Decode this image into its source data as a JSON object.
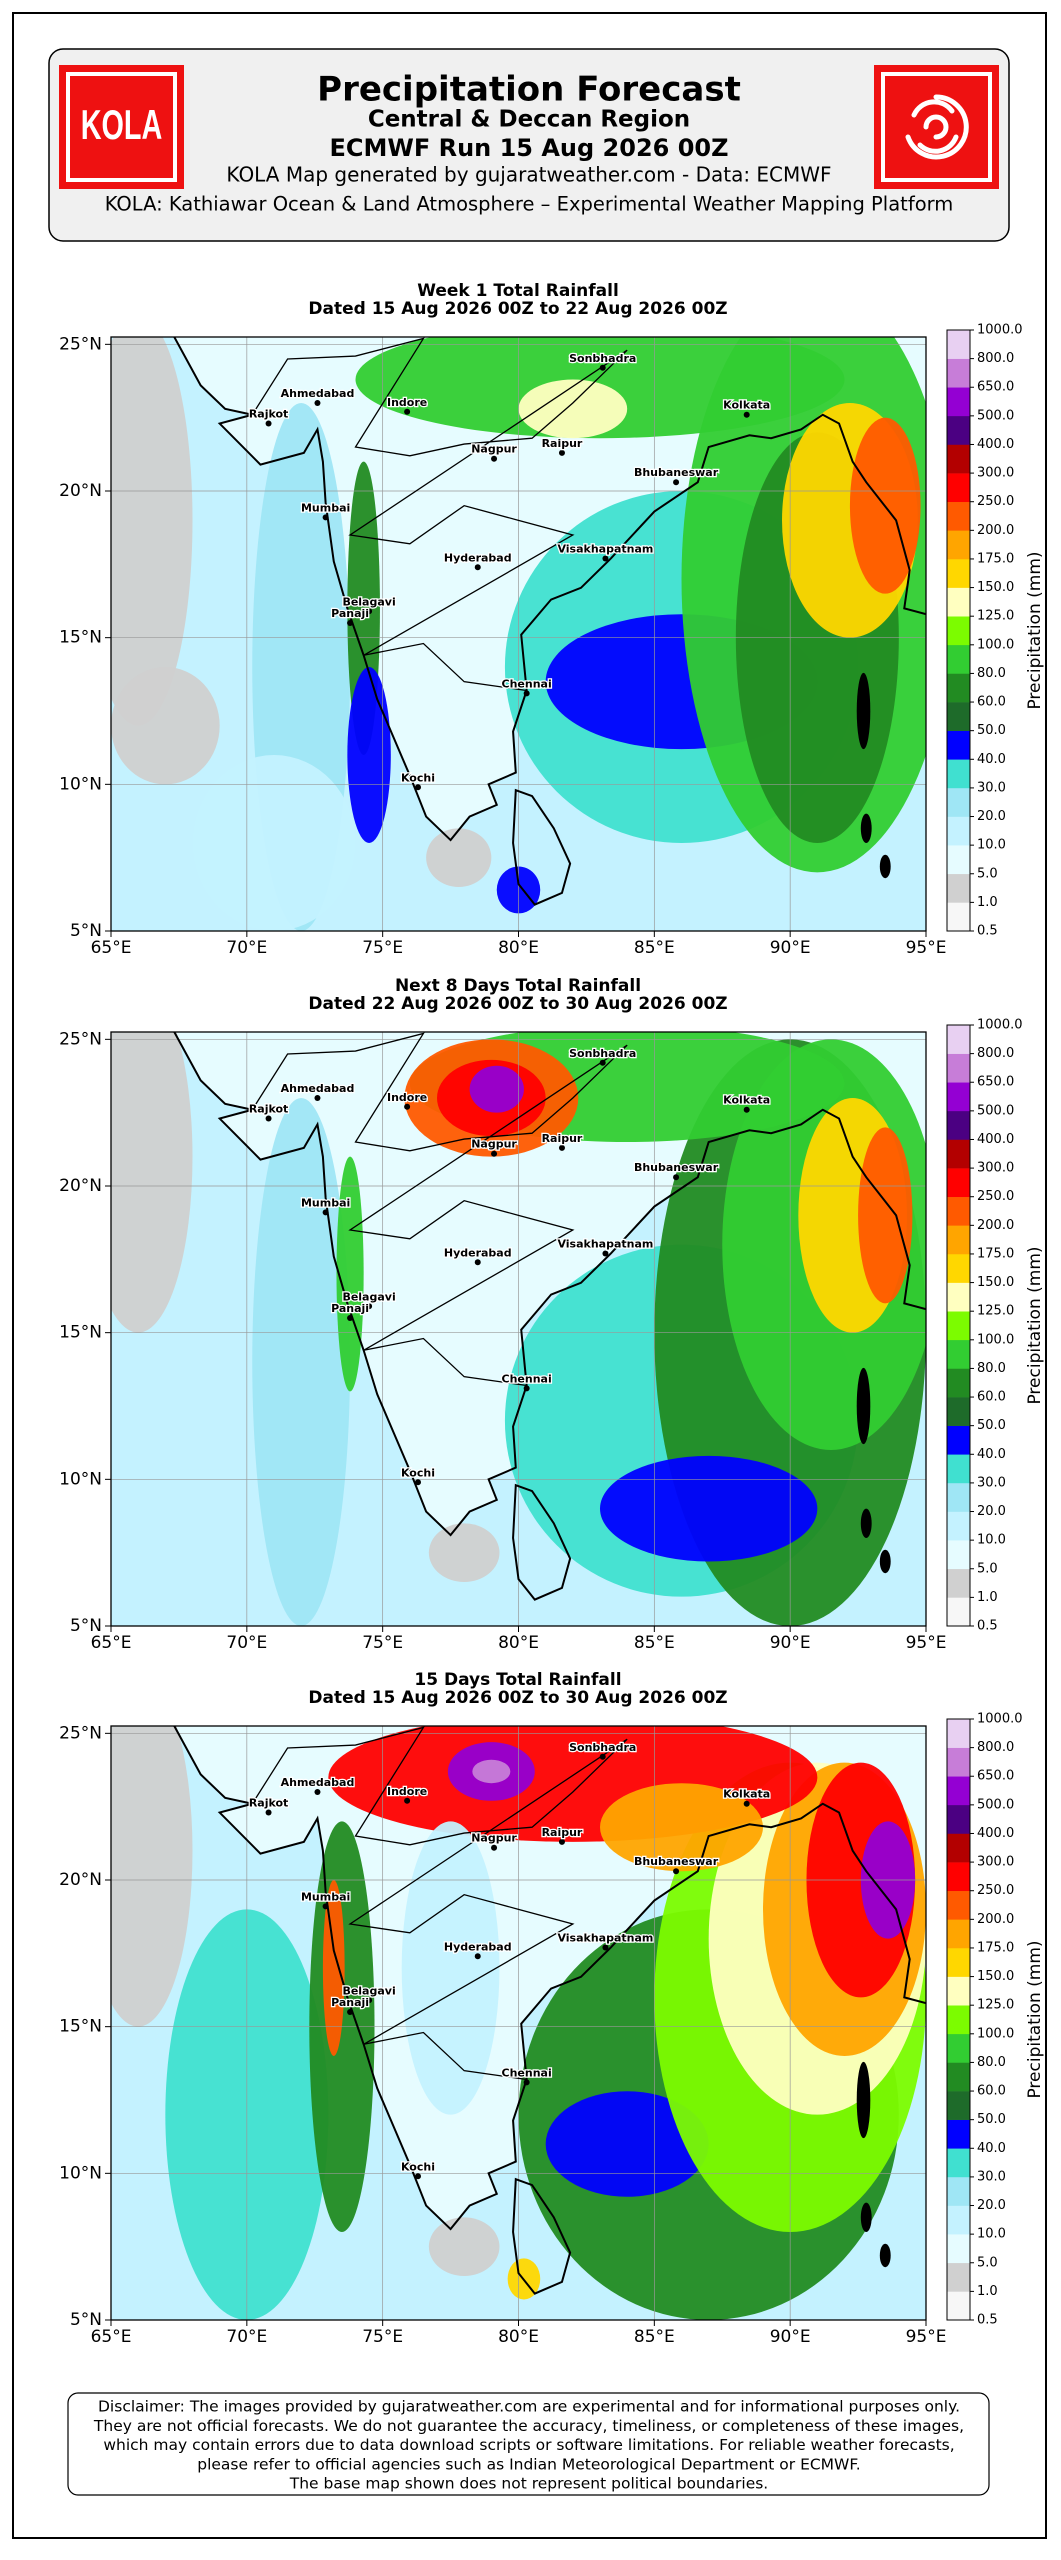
{
  "header": {
    "logo_text": "KOLA",
    "title": "Precipitation Forecast",
    "subtitle": "Central & Deccan Region",
    "run": "ECMWF Run 15 Aug 2026 00Z",
    "credit": "KOLA Map generated by gujaratweather.com - Data: ECMWF",
    "platform": "KOLA: Kathiawar Ocean & Land Atmosphere – Experimental Weather Mapping Platform"
  },
  "maps": [
    {
      "title": "Week 1 Total Rainfall",
      "subtitle": "Dated 15 Aug 2026 00Z to 22 Aug 2026 00Z"
    },
    {
      "title": "Next 8 Days Total Rainfall",
      "subtitle": "Dated 22 Aug 2026 00Z to 30 Aug 2026 00Z"
    },
    {
      "title": "15 Days Total Rainfall",
      "subtitle": "Dated 15 Aug 2026 00Z to 30 Aug 2026 00Z"
    }
  ],
  "axes": {
    "xlim": [
      65,
      95
    ],
    "ylim": [
      5,
      25.25
    ],
    "xticks": [
      {
        "value": 65,
        "label": "65°E"
      },
      {
        "value": 70,
        "label": "70°E"
      },
      {
        "value": 75,
        "label": "75°E"
      },
      {
        "value": 80,
        "label": "80°E"
      },
      {
        "value": 85,
        "label": "85°E"
      },
      {
        "value": 90,
        "label": "90°E"
      },
      {
        "value": 95,
        "label": "95°E"
      }
    ],
    "yticks": [
      {
        "value": 5,
        "label": "5°N"
      },
      {
        "value": 10,
        "label": "10°N"
      },
      {
        "value": 15,
        "label": "15°N"
      },
      {
        "value": 20,
        "label": "20°N"
      },
      {
        "value": 25,
        "label": "25°N"
      }
    ]
  },
  "cities": [
    {
      "name": "Sonbhadra",
      "lon": 83.1,
      "lat": 24.2
    },
    {
      "name": "Ahmedabad",
      "lon": 72.6,
      "lat": 23.0
    },
    {
      "name": "Rajkot",
      "lon": 70.8,
      "lat": 22.3
    },
    {
      "name": "Indore",
      "lon": 75.9,
      "lat": 22.7
    },
    {
      "name": "Kolkata",
      "lon": 88.4,
      "lat": 22.6
    },
    {
      "name": "Nagpur",
      "lon": 79.1,
      "lat": 21.1
    },
    {
      "name": "Raipur",
      "lon": 81.6,
      "lat": 21.3
    },
    {
      "name": "Bhubaneswar",
      "lon": 85.8,
      "lat": 20.3
    },
    {
      "name": "Mumbai",
      "lon": 72.9,
      "lat": 19.1
    },
    {
      "name": "Hyderabad",
      "lon": 78.5,
      "lat": 17.4
    },
    {
      "name": "Visakhapatnam",
      "lon": 83.2,
      "lat": 17.7
    },
    {
      "name": "Belagavi",
      "lon": 74.5,
      "lat": 15.9
    },
    {
      "name": "Panaji",
      "lon": 73.8,
      "lat": 15.5
    },
    {
      "name": "Chennai",
      "lon": 80.3,
      "lat": 13.1
    },
    {
      "name": "Kochi",
      "lon": 76.3,
      "lat": 9.9
    }
  ],
  "colorbar": {
    "label": "Precipitation (mm)",
    "levels": [
      {
        "value": 0.5,
        "label": "0.5"
      },
      {
        "value": 1,
        "label": "1.0"
      },
      {
        "value": 5,
        "label": "5.0"
      },
      {
        "value": 10,
        "label": "10.0"
      },
      {
        "value": 20,
        "label": "20.0"
      },
      {
        "value": 30,
        "label": "30.0"
      },
      {
        "value": 40,
        "label": "40.0"
      },
      {
        "value": 50,
        "label": "50.0"
      },
      {
        "value": 60,
        "label": "60.0"
      },
      {
        "value": 80,
        "label": "80.0"
      },
      {
        "value": 100,
        "label": "100.0"
      },
      {
        "value": 125,
        "label": "125.0"
      },
      {
        "value": 150,
        "label": "150.0"
      },
      {
        "value": 175,
        "label": "175.0"
      },
      {
        "value": 200,
        "label": "200.0"
      },
      {
        "value": 250,
        "label": "250.0"
      },
      {
        "value": 300,
        "label": "300.0"
      },
      {
        "value": 400,
        "label": "400.0"
      },
      {
        "value": 500,
        "label": "500.0"
      },
      {
        "value": 650,
        "label": "650.0"
      },
      {
        "value": 800,
        "label": "800.0"
      },
      {
        "value": 1000,
        "label": "1000.0"
      }
    ],
    "colors": [
      "#f7f7f7",
      "#d0d0d0",
      "#e6fcff",
      "#c4f2ff",
      "#9fe6f5",
      "#40e0d0",
      "#0000ff",
      "#1e6b2a",
      "#228b22",
      "#32cd32",
      "#7cfc00",
      "#ffffc0",
      "#ffd700",
      "#ffa500",
      "#ff5a00",
      "#ff0000",
      "#b30000",
      "#4b0082",
      "#9400d3",
      "#c77dd8",
      "#e8d0f2"
    ]
  },
  "disclaimer": [
    "Disclaimer: The images provided by gujaratweather.com are experimental and for informational purposes only.",
    "They are not official forecasts. We do not guarantee the accuracy, timeliness, or completeness of these images,",
    "which may contain errors due to data download scripts or software limitations. For reliable weather forecasts,",
    "please refer to official agencies such as Indian Meteorological Department or ECMWF.",
    "The base map shown does not represent political boundaries."
  ]
}
